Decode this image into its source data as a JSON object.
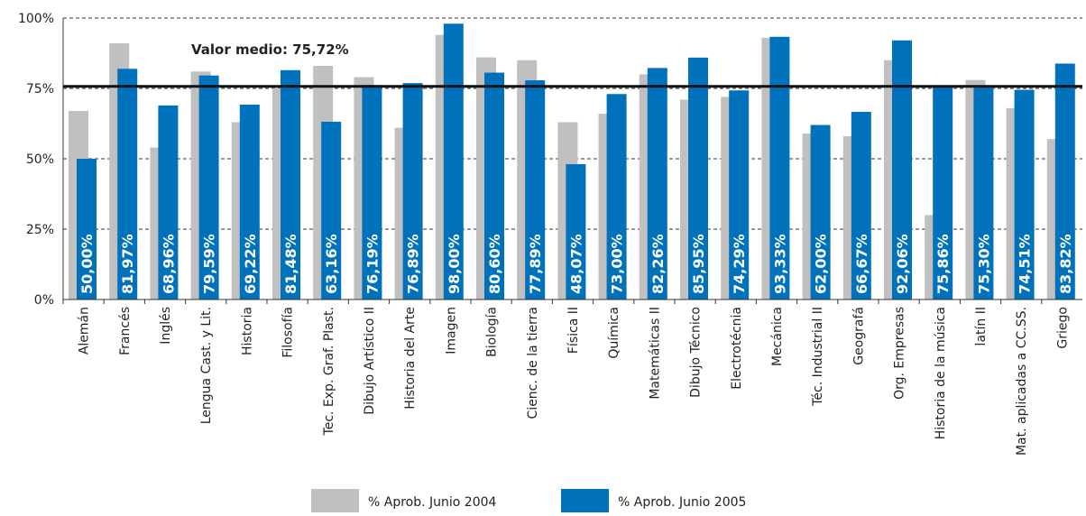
{
  "chart_data": {
    "type": "bar",
    "categories": [
      "Alemán",
      "Francés",
      "Inglés",
      "Lengua Cast. y Lit.",
      "Historia",
      "Filosofía",
      "Tec. Exp. Graf. Plast.",
      "Dibujo Artístico II",
      "Historia del Arte",
      "Imagen",
      "Biología",
      "Cienc. de la tierra",
      "Física II",
      "Química",
      "Matemáticas II",
      "Dibujo Técnico",
      "Electrotécnia",
      "Mecánica",
      "Téc. Industrial II",
      "Geografá",
      "Org. Empresas",
      "Historia de la música",
      "latín II",
      "Mat. aplicadas a CC.SS.",
      "Griego"
    ],
    "series": [
      {
        "name": "% Aprob. Junio 2004",
        "color": "#c0c0c0",
        "values": [
          67,
          91,
          54,
          81,
          63,
          75,
          83,
          79,
          61,
          94,
          86,
          85,
          63,
          66,
          80,
          71,
          72,
          93,
          59,
          58,
          85,
          30,
          78,
          68,
          57
        ]
      },
      {
        "name": "% Aprob. Junio 2005",
        "color": "#0072bc",
        "values": [
          50.0,
          81.97,
          68.96,
          79.59,
          69.22,
          81.48,
          63.16,
          76.19,
          76.89,
          98.0,
          80.6,
          77.89,
          48.07,
          73.0,
          82.26,
          85.95,
          74.29,
          93.33,
          62.0,
          66.67,
          92.06,
          75.86,
          75.3,
          74.51,
          83.82
        ],
        "value_labels": [
          "50,00%",
          "81,97%",
          "68,96%",
          "79,59%",
          "69,22%",
          "81,48%",
          "63,16%",
          "76,19%",
          "76,89%",
          "98,00%",
          "80,60%",
          "77,89%",
          "48,07%",
          "73,00%",
          "82,26%",
          "85,95%",
          "74,29%",
          "93,33%",
          "62,00%",
          "66,67%",
          "92,06%",
          "75,86%",
          "75,30%",
          "74,51%",
          "83,82%"
        ]
      }
    ],
    "mean": {
      "value": 75.72,
      "label": "Valor medio: 75,72%"
    },
    "ylim": [
      0,
      100
    ],
    "yticks": [
      {
        "value": 0,
        "label": "0%"
      },
      {
        "value": 25,
        "label": "25%"
      },
      {
        "value": 50,
        "label": "50%"
      },
      {
        "value": 75,
        "label": "75%"
      },
      {
        "value": 100,
        "label": "100%"
      }
    ],
    "grid": true
  }
}
